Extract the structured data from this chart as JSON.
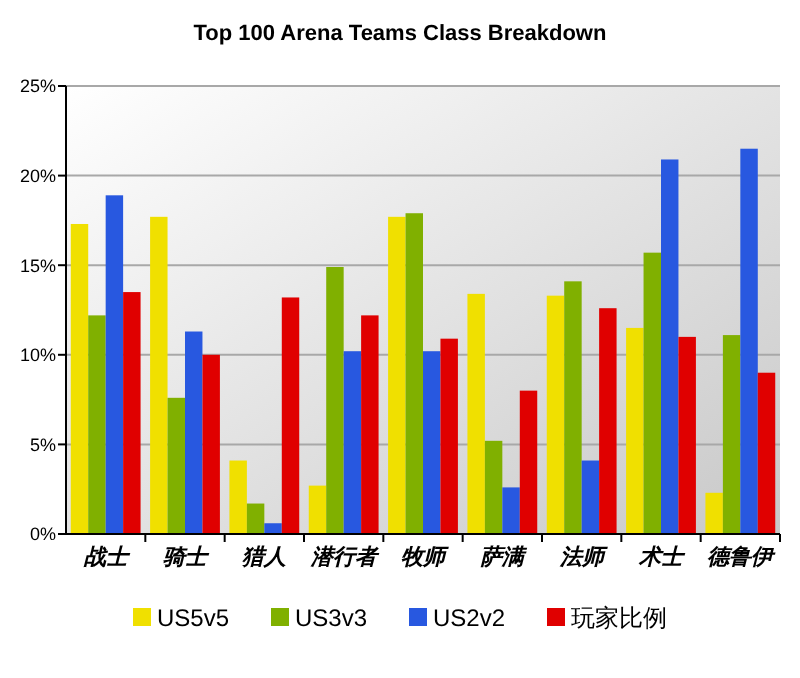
{
  "chart_data": {
    "type": "bar",
    "title": "Top 100 Arena Teams Class Breakdown",
    "categories": [
      "战士",
      "骑士",
      "猎人",
      "潜行者",
      "牧师",
      "萨满",
      "法师",
      "术士",
      "德鲁伊"
    ],
    "series": [
      {
        "name": "US5v5",
        "color": "#f0e000",
        "values": [
          17.3,
          17.7,
          4.1,
          2.7,
          17.7,
          13.4,
          13.3,
          11.5,
          2.3
        ]
      },
      {
        "name": "US3v3",
        "color": "#80b000",
        "values": [
          12.2,
          7.6,
          1.7,
          14.9,
          17.9,
          5.2,
          14.1,
          15.7,
          11.1
        ]
      },
      {
        "name": "US2v2",
        "color": "#2858e0",
        "values": [
          18.9,
          11.3,
          0.6,
          10.2,
          10.2,
          2.6,
          4.1,
          20.9,
          21.5
        ]
      },
      {
        "name": "玩家比例",
        "color": "#e00000",
        "values": [
          13.5,
          10.0,
          13.2,
          12.2,
          10.9,
          8.0,
          12.6,
          11.0,
          9.0
        ]
      }
    ],
    "ylim": [
      0,
      25
    ],
    "yticks": [
      {
        "value": 0,
        "label": "0%"
      },
      {
        "value": 5,
        "label": "5%"
      },
      {
        "value": 10,
        "label": "10%"
      },
      {
        "value": 15,
        "label": "15%"
      },
      {
        "value": 20,
        "label": "20%"
      },
      {
        "value": 25,
        "label": "25%"
      }
    ],
    "grid": "y",
    "legend": "bottom"
  }
}
